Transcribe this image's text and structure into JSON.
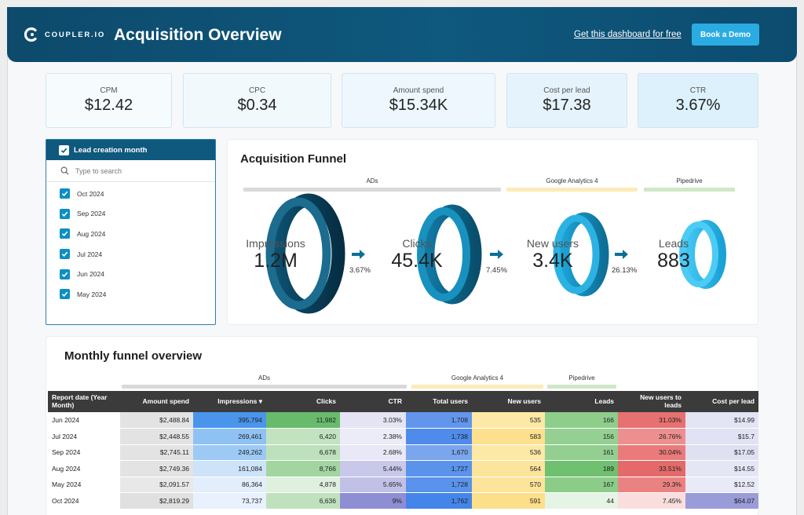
{
  "header": {
    "logo_text": "COUPLER.IO",
    "title": "Acquisition Overview",
    "link": "Get this dashboard for free",
    "demo_button": "Book a Demo"
  },
  "kpis": [
    {
      "label": "CPM",
      "value": "$12.42"
    },
    {
      "label": "CPC",
      "value": "$0.34"
    },
    {
      "label": "Amount spend",
      "value": "$15.34K"
    },
    {
      "label": "Cost per lead",
      "value": "$17.38"
    },
    {
      "label": "CTR",
      "value": "3.67%"
    }
  ],
  "filter": {
    "title": "Lead creation month",
    "search_placeholder": "Type to search",
    "months": [
      "Oct 2024",
      "Sep 2024",
      "Aug 2024",
      "Jul 2024",
      "Jun 2024",
      "May 2024"
    ]
  },
  "funnel": {
    "title": "Acquisition Funnel",
    "segments": [
      "ADs",
      "Google Analytics 4",
      "Pipedrive"
    ],
    "stages": [
      {
        "label": "Impressions",
        "value": "1.2M"
      },
      {
        "label": "Clicks",
        "value": "45.4K"
      },
      {
        "label": "New users",
        "value": "3.4K"
      },
      {
        "label": "Leads",
        "value": "883"
      }
    ],
    "rates": [
      "3.67%",
      "7.45%",
      "26.13%"
    ],
    "colors": {
      "ads": "#d9d9d9",
      "ga4": "#fcebb6",
      "pipedrive": "#cfe8c8"
    }
  },
  "monthly": {
    "title": "Monthly funnel overview",
    "segments": [
      "ADs",
      "Google Analytics 4",
      "Pipedrive"
    ],
    "columns": [
      "Report date (Year Month)",
      "Amount spend",
      "Impressions ▾",
      "Clicks",
      "CTR",
      "Total users",
      "New users",
      "Leads",
      "New users to leads",
      "Cost per lead"
    ],
    "rows": [
      [
        "Jun 2024",
        "$2,488.84",
        "395,794",
        "11,982",
        "3.03%",
        "1,708",
        "535",
        "166",
        "31.03%",
        "$14.99"
      ],
      [
        "Jul 2024",
        "$2,448.55",
        "269,461",
        "6,420",
        "2.38%",
        "1,738",
        "583",
        "156",
        "26.76%",
        "$15.7"
      ],
      [
        "Sep 2024",
        "$2,745.11",
        "249,262",
        "6,678",
        "2.68%",
        "1,670",
        "536",
        "161",
        "30.04%",
        "$17.05"
      ],
      [
        "Aug 2024",
        "$2,749.36",
        "161,084",
        "8,766",
        "5.44%",
        "1,727",
        "564",
        "189",
        "33.51%",
        "$14.55"
      ],
      [
        "May 2024",
        "$2,091.57",
        "86,364",
        "4,878",
        "5.65%",
        "1,728",
        "570",
        "167",
        "29.3%",
        "$12.52"
      ],
      [
        "Oct 2024",
        "$2,819.29",
        "73,737",
        "6,636",
        "9%",
        "1,762",
        "591",
        "44",
        "7.45%",
        "$64.07"
      ]
    ]
  }
}
